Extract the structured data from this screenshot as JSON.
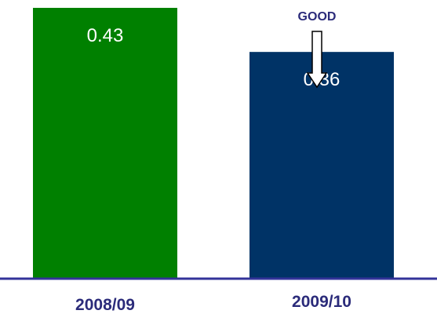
{
  "chart_data": {
    "type": "bar",
    "categories": [
      "2008/09",
      "2009/10"
    ],
    "values": [
      0.43,
      0.36
    ],
    "value_labels": [
      "0.43",
      "0.36"
    ],
    "colors": [
      "#008000",
      "#003366"
    ],
    "axis_color": "#333399",
    "category_label_color": "#2b2b7a",
    "title": "",
    "xlabel": "",
    "ylabel": "",
    "ylim": [
      0,
      0.43
    ],
    "grid": false,
    "legend": "none",
    "annotation": {
      "text": "GOOD",
      "icon": "down-arrow-icon",
      "target_category": "2009/10"
    }
  }
}
